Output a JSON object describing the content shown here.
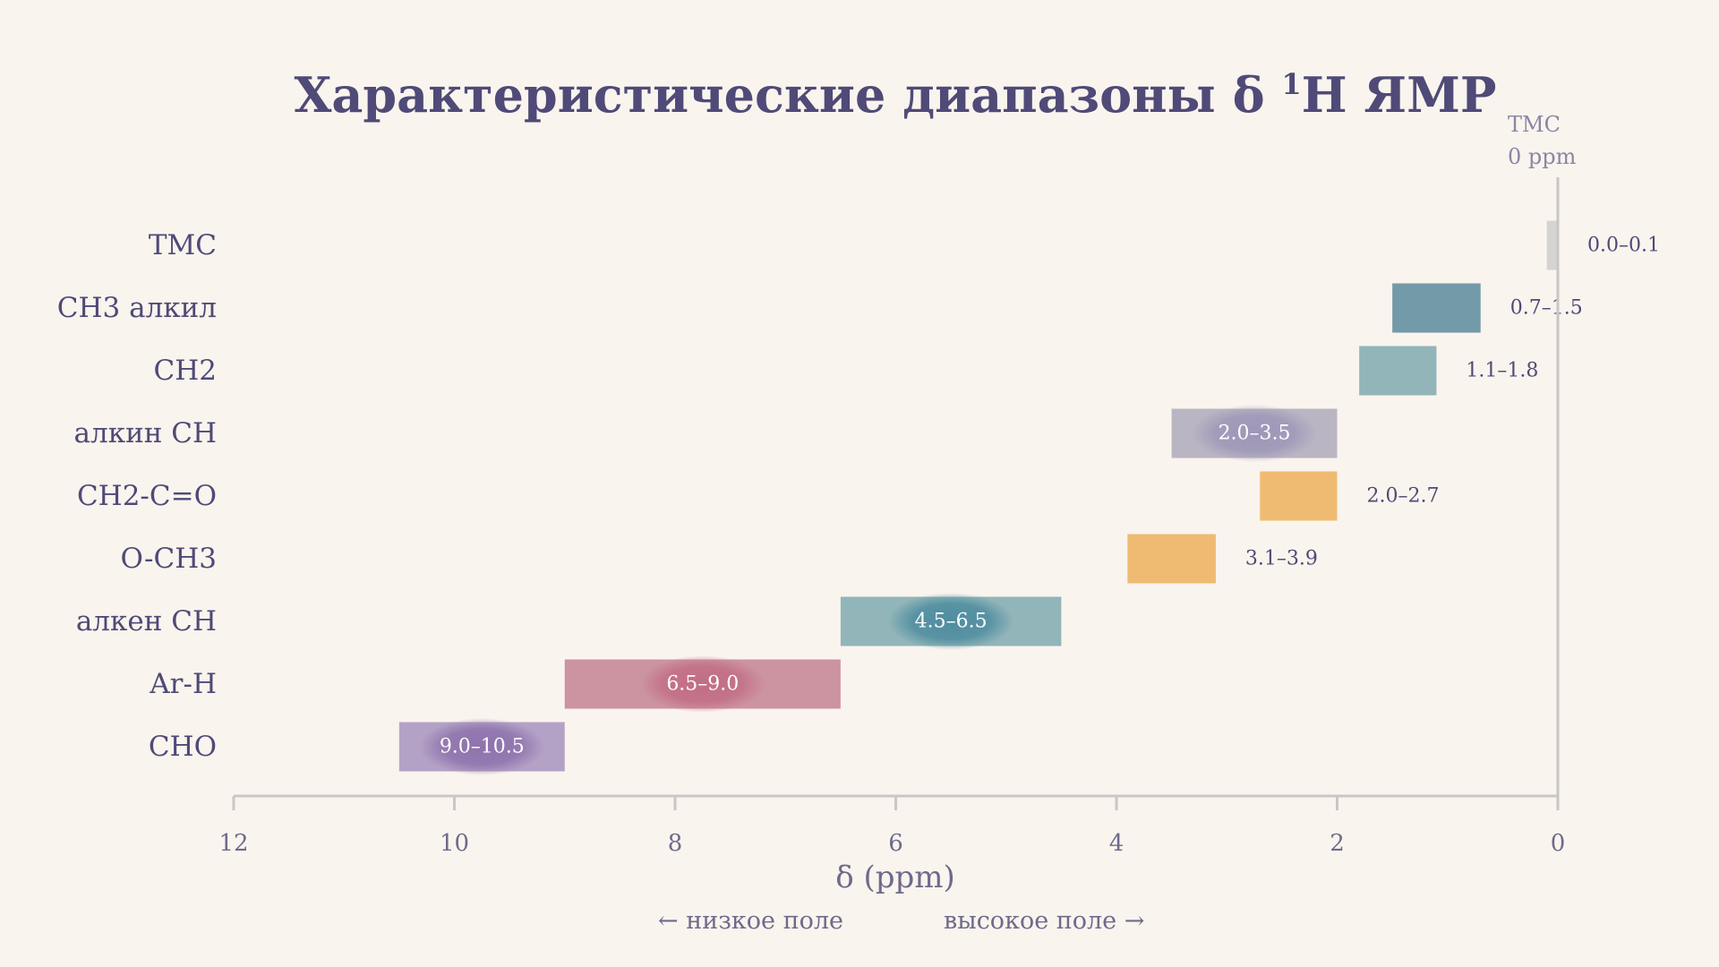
{
  "chart_data": {
    "type": "bar",
    "title_main": "Характеристические диапазоны δ ",
    "title_sup": "1",
    "title_tail": "H ЯМР",
    "xlabel": "δ (ppm)",
    "ylabel": "",
    "xlim": [
      12,
      0
    ],
    "x_reversed": true,
    "x_ticks": [
      "12",
      "10",
      "8",
      "6",
      "4",
      "2",
      "0"
    ],
    "x_tick_values": [
      12,
      10,
      8,
      6,
      4,
      2,
      0
    ],
    "direction_left": "← низкое поле",
    "direction_right": "высокое поле →",
    "reference_label_line1": "ТМС",
    "reference_label_line2": "0 ppm",
    "reference_value": 0,
    "grid": false,
    "series": [
      {
        "category": "ТМС",
        "low": 0.0,
        "high": 0.1,
        "label": "0.0–0.1",
        "color": "#d6d3d3",
        "label_inside": false
      },
      {
        "category": "CH3 алкил",
        "low": 0.7,
        "high": 1.5,
        "label": "0.7–1.5",
        "color": "#739aa8",
        "label_inside": false
      },
      {
        "category": "CH2",
        "low": 1.1,
        "high": 1.8,
        "label": "1.1–1.8",
        "color": "#91b5b9",
        "label_inside": false
      },
      {
        "category": "алкин CH",
        "low": 2.0,
        "high": 3.5,
        "label": "2.0–3.5",
        "color": "#bab5c3",
        "label_inside": true,
        "glow": "#9e97b8"
      },
      {
        "category": "CH2-C=O",
        "low": 2.0,
        "high": 2.7,
        "label": "2.0–2.7",
        "color": "#efbb72",
        "label_inside": false
      },
      {
        "category": "O-CH3",
        "low": 3.1,
        "high": 3.9,
        "label": "3.1–3.9",
        "color": "#efbb72",
        "label_inside": false
      },
      {
        "category": "алкен CH",
        "low": 4.5,
        "high": 6.5,
        "label": "4.5–6.5",
        "color": "#91b5b9",
        "label_inside": true,
        "glow": "#4f8da0"
      },
      {
        "category": "Ar-H",
        "low": 6.5,
        "high": 9.0,
        "label": "6.5–9.0",
        "color": "#cc94a0",
        "label_inside": true,
        "glow": "#c26e85"
      },
      {
        "category": "CHO",
        "low": 9.0,
        "high": 10.5,
        "label": "9.0–10.5",
        "color": "#b4a2c6",
        "label_inside": true,
        "glow": "#8e73ad"
      }
    ]
  }
}
